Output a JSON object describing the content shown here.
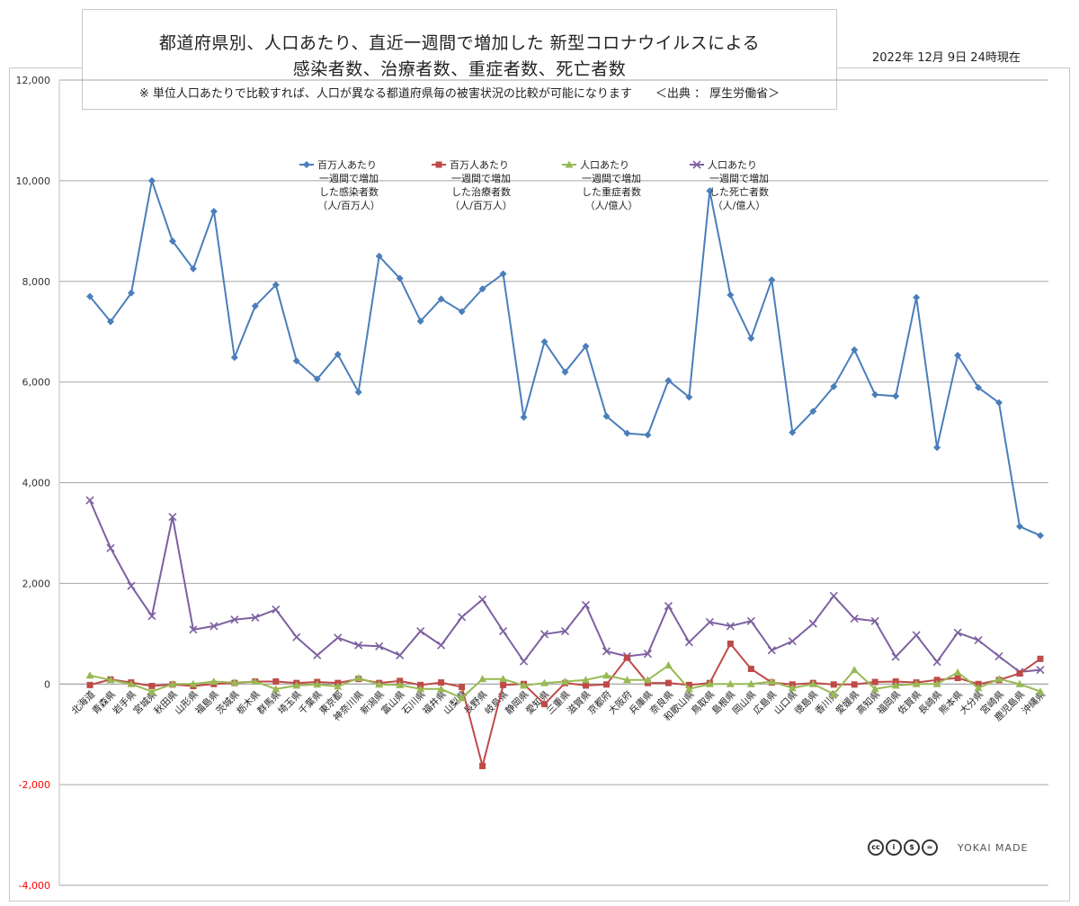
{
  "header": {
    "title_line1": "都道府県別、人口あたり、直近一週間で増加した 新型コロナウイルスによる",
    "title_line2": "感染者数、治療者数、重症者数、死亡者数",
    "note": "※ 単位人口あたりで比較すれば、人口が異なる都道府県毎の被害状況の比較が可能になります　　＜出典 ： 厚生労働省＞",
    "date": "2022年 12月 9日 24時現在"
  },
  "colors": {
    "infected": "#4a7ebb",
    "treated": "#be4b48",
    "severe": "#98b954",
    "deaths": "#7d60a0",
    "negative_tick": "#ff0000",
    "grid": "#a6a6a6"
  },
  "icons": [
    "cc-license-icons",
    "brand-logo"
  ],
  "brand": "YOKAI MADE",
  "chart_data": {
    "type": "line",
    "ylim": [
      -4000,
      12000
    ],
    "yticks": [
      "12,000",
      "10,000",
      "8,000",
      "6,000",
      "4,000",
      "2,000",
      "0",
      "-2,000",
      "-4,000"
    ],
    "ytick_values": [
      12000,
      10000,
      8000,
      6000,
      4000,
      2000,
      0,
      -2000,
      -4000
    ],
    "grid": true,
    "legend_position": "top-center",
    "categories": [
      "北海道",
      "青森県",
      "岩手県",
      "宮城県",
      "秋田県",
      "山形県",
      "福島県",
      "茨城県",
      "栃木県",
      "群馬県",
      "埼玉県",
      "千葉県",
      "東京都",
      "神奈川県",
      "新潟県",
      "富山県",
      "石川県",
      "福井県",
      "山梨県",
      "長野県",
      "岐阜県",
      "静岡県",
      "愛知県",
      "三重県",
      "滋賀県",
      "京都府",
      "大阪府",
      "兵庫県",
      "奈良県",
      "和歌山県",
      "鳥取県",
      "島根県",
      "岡山県",
      "広島県",
      "山口県",
      "徳島県",
      "香川県",
      "愛媛県",
      "高知県",
      "福岡県",
      "佐賀県",
      "長崎県",
      "熊本県",
      "大分県",
      "宮崎県",
      "鹿児島県",
      "沖縄県"
    ],
    "series": [
      {
        "name": "百万人あたり一週間で増加した感染者数（人/百万人）",
        "legend_lines": [
          "百万人あたり",
          "一週間で増加",
          "した感染者数",
          "（人/百万人）"
        ],
        "marker": "diamond",
        "values": [
          7700,
          7200,
          7770,
          10000,
          8800,
          8250,
          9390,
          6490,
          7510,
          7930,
          6420,
          6060,
          6550,
          5800,
          8500,
          8060,
          7210,
          7650,
          7400,
          7850,
          8150,
          5300,
          6800,
          6200,
          6710,
          5320,
          4980,
          4950,
          6030,
          5700,
          9800,
          7730,
          6870,
          8030,
          5000,
          5420,
          5910,
          6640,
          5750,
          5720,
          7680,
          4700,
          6530,
          5890,
          5590,
          3130,
          2950
        ]
      },
      {
        "name": "百万人あたり一週間で増加した治療者数（人/百万人）",
        "legend_lines": [
          "百万人あたり",
          "一週間で増加",
          "した治療者数",
          "（人/百万人）"
        ],
        "marker": "square",
        "values": [
          -20,
          90,
          30,
          -40,
          -10,
          -40,
          0,
          20,
          50,
          50,
          20,
          40,
          20,
          100,
          20,
          60,
          -20,
          30,
          -60,
          -1630,
          -20,
          0,
          -400,
          20,
          -30,
          -10,
          520,
          20,
          20,
          -20,
          20,
          800,
          300,
          30,
          -10,
          20,
          -10,
          -10,
          40,
          50,
          30,
          80,
          120,
          0,
          80,
          210,
          500
        ]
      },
      {
        "name": "人口あたり一週間で増加した重症者数（人/億人）",
        "legend_lines": [
          "人口あたり",
          "一週間で増加",
          "した重症者数",
          "（人/億人）"
        ],
        "marker": "triangle",
        "values": [
          170,
          80,
          0,
          -150,
          0,
          0,
          50,
          30,
          50,
          -100,
          -30,
          -10,
          -50,
          120,
          -10,
          -20,
          -100,
          -100,
          -280,
          100,
          100,
          -30,
          20,
          50,
          80,
          170,
          80,
          80,
          370,
          -100,
          0,
          0,
          0,
          50,
          -80,
          0,
          -200,
          280,
          -100,
          -30,
          0,
          0,
          230,
          -80,
          100,
          0,
          -150
        ]
      },
      {
        "name": "人口あたり一週間で増加した死亡者数（人/億人）",
        "legend_lines": [
          "人口あたり",
          "一週間で増加",
          "した死亡者数",
          "（人/億人）"
        ],
        "marker": "x",
        "values": [
          3650,
          2700,
          1950,
          1350,
          3320,
          1080,
          1150,
          1280,
          1320,
          1480,
          930,
          570,
          920,
          770,
          750,
          570,
          1050,
          770,
          1330,
          1680,
          1050,
          450,
          990,
          1050,
          1570,
          650,
          550,
          600,
          1550,
          830,
          1230,
          1150,
          1250,
          670,
          850,
          1200,
          1750,
          1300,
          1250,
          540,
          970,
          440,
          1020,
          870,
          550,
          240,
          280
        ]
      }
    ]
  }
}
